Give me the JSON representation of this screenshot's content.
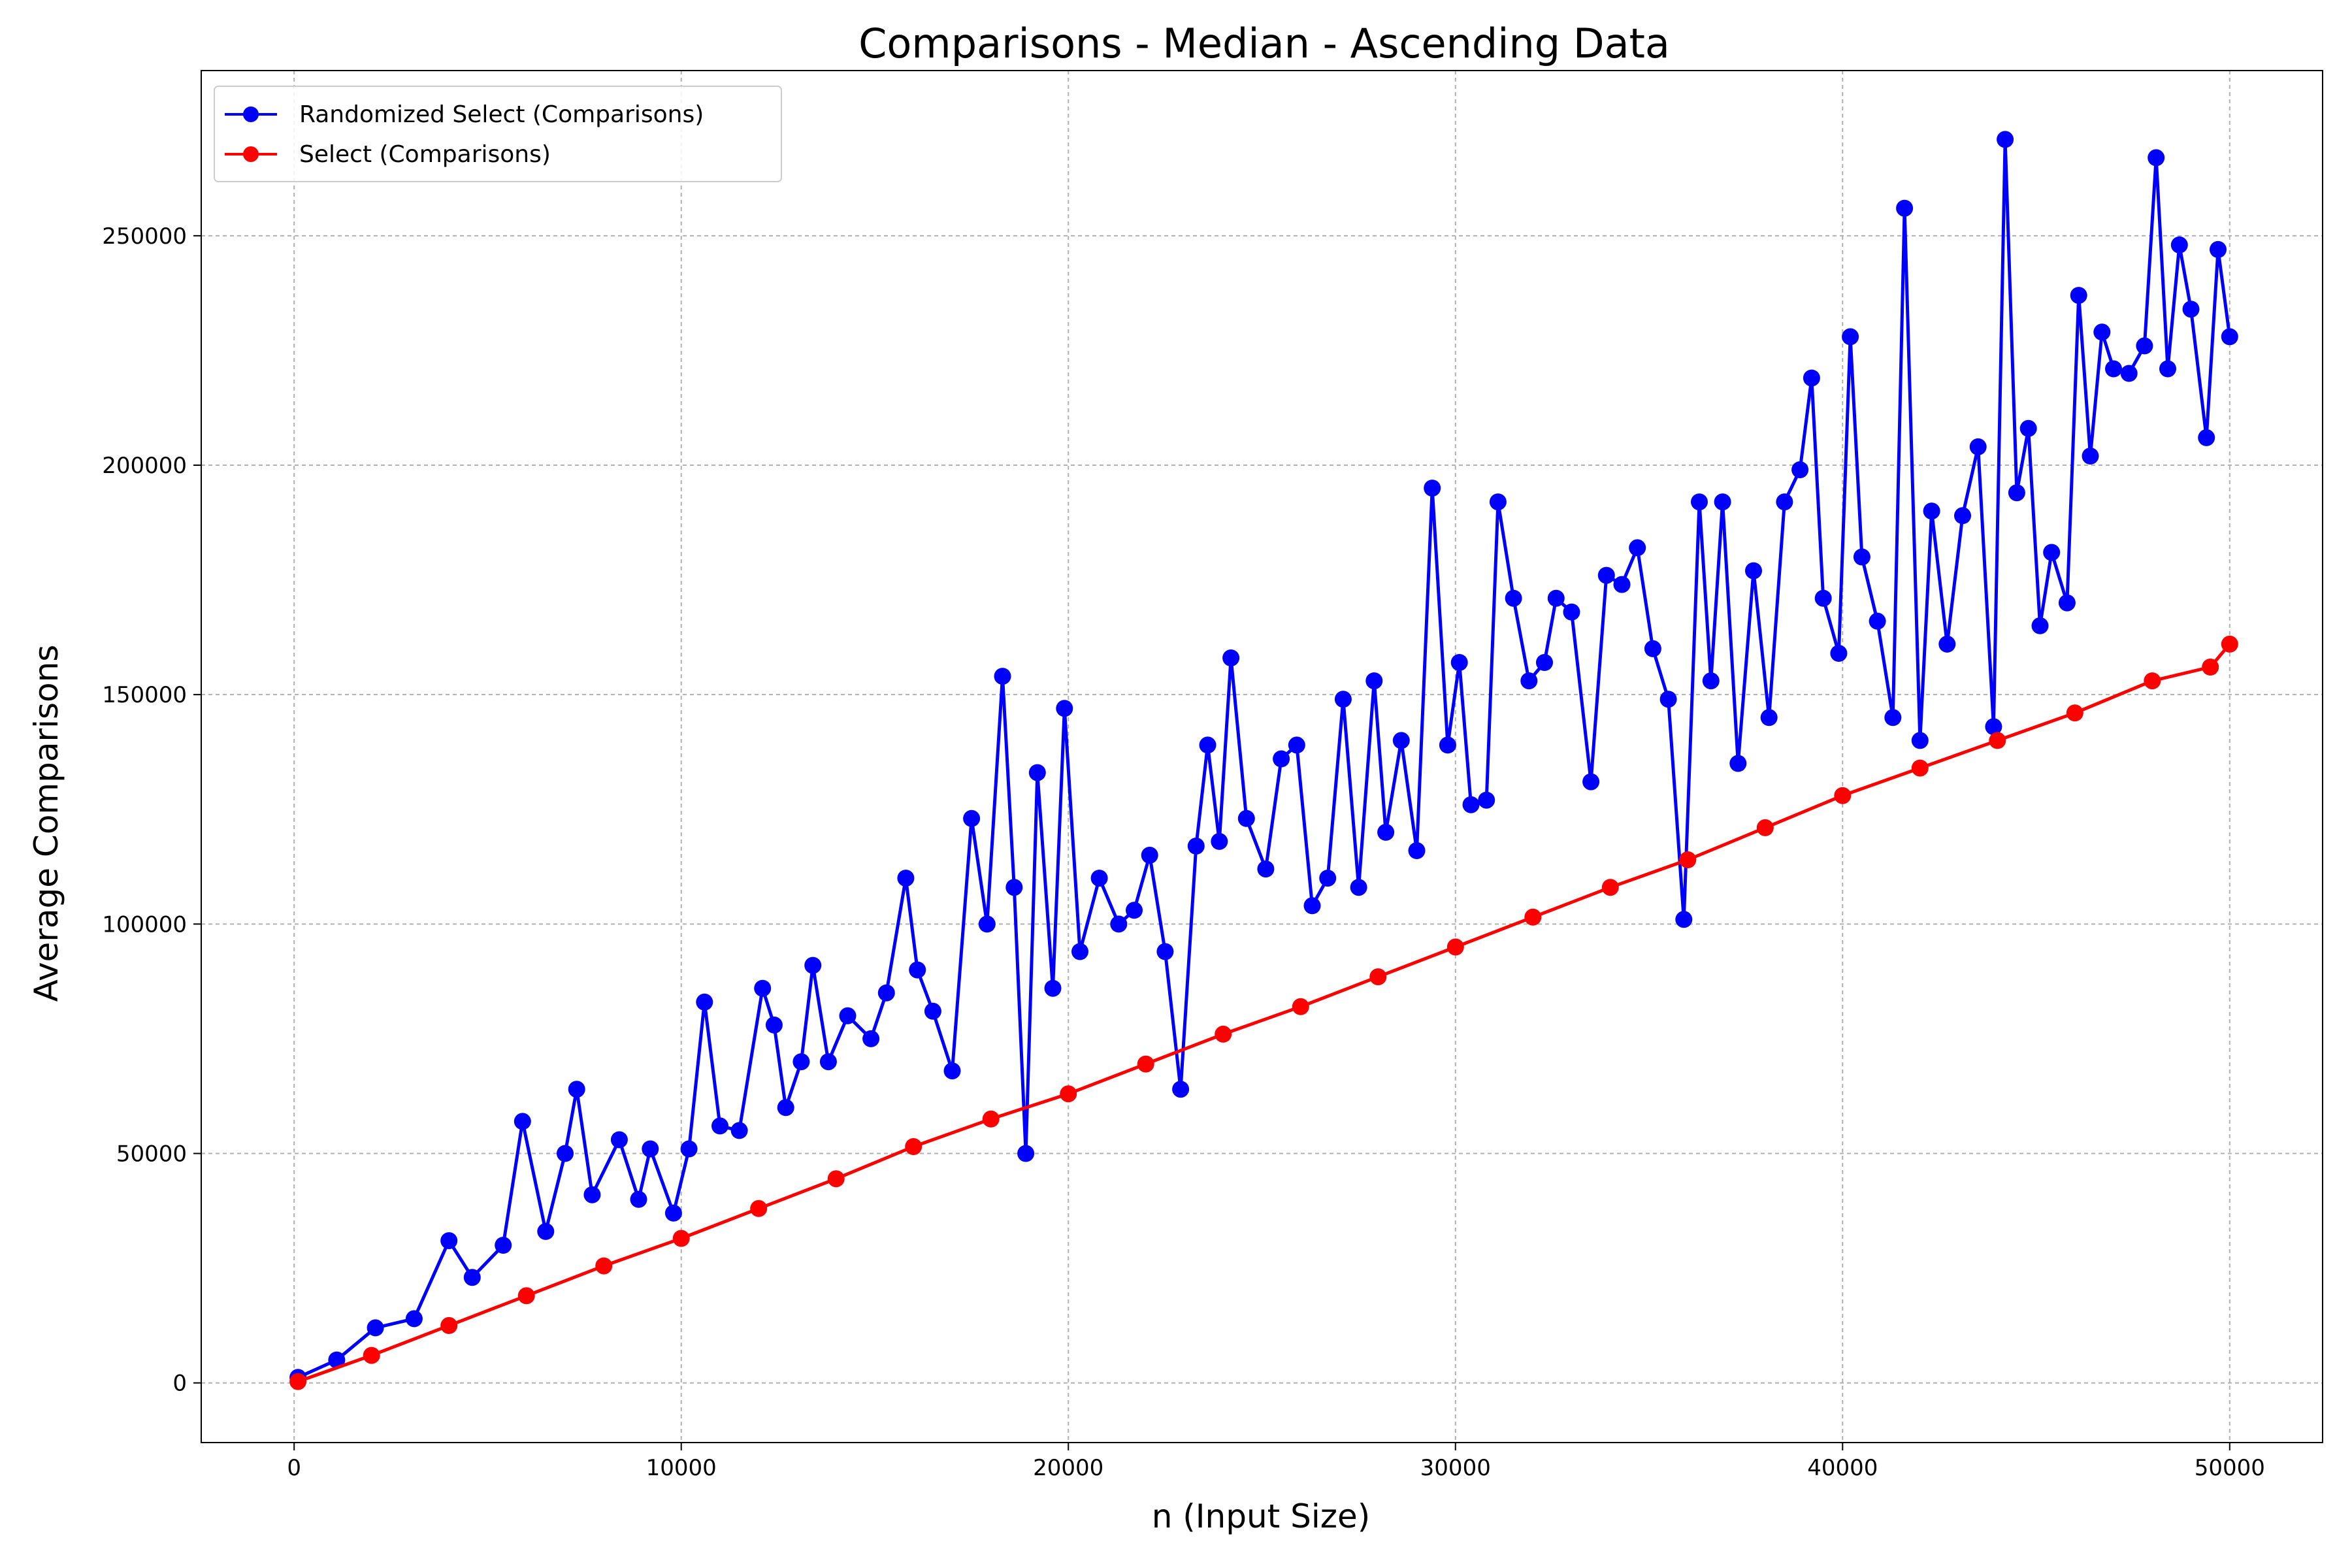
{
  "chart_data": {
    "type": "line",
    "title": "Comparisons - Median - Ascending Data",
    "xlabel": "n (Input Size)",
    "ylabel": "Average Comparisons",
    "xlim": [
      -2400,
      52400
    ],
    "ylim": [
      -13000,
      286000
    ],
    "xticks": [
      0,
      10000,
      20000,
      30000,
      40000,
      50000
    ],
    "yticks": [
      0,
      50000,
      100000,
      150000,
      200000,
      250000
    ],
    "grid": true,
    "legend_position": "top-left",
    "series": [
      {
        "name": "Randomized Select (Comparisons)",
        "color": "#0000ff",
        "x": [
          100,
          1100,
          2100,
          3100,
          4000,
          4600,
          5400,
          5900,
          6500,
          7000,
          7300,
          7700,
          8400,
          8900,
          9200,
          9800,
          10200,
          10600,
          11000,
          11500,
          12100,
          12400,
          12700,
          13100,
          13400,
          13800,
          14300,
          14900,
          15300,
          15800,
          16100,
          16500,
          17000,
          17500,
          17900,
          18300,
          18600,
          18900,
          19200,
          19600,
          19900,
          20300,
          20800,
          21300,
          21700,
          22100,
          22500,
          22900,
          23300,
          23600,
          23900,
          24200,
          24600,
          25100,
          25500,
          25900,
          26300,
          26700,
          27100,
          27500,
          27900,
          28200,
          28600,
          29000,
          29400,
          29800,
          30100,
          30400,
          30800,
          31100,
          31500,
          31900,
          32300,
          32600,
          33000,
          33500,
          33900,
          34300,
          34700,
          35100,
          35500,
          35900,
          36300,
          36600,
          36900,
          37300,
          37700,
          38100,
          38500,
          38900,
          39200,
          39500,
          39900,
          40200,
          40500,
          40900,
          41300,
          41600,
          42000,
          42300,
          42700,
          43100,
          43500,
          43900,
          44200,
          44500,
          44800,
          45100,
          45400,
          45800,
          46100,
          46400,
          46700,
          47000,
          47400,
          47800,
          48100,
          48400,
          48700,
          49000,
          49400,
          49700,
          50000
        ],
        "y": [
          1200,
          5000,
          12000,
          14000,
          31000,
          23000,
          30000,
          57000,
          33000,
          50000,
          64000,
          41000,
          53000,
          40000,
          51000,
          37000,
          51000,
          83000,
          56000,
          55000,
          86000,
          78000,
          60000,
          70000,
          91000,
          70000,
          80000,
          75000,
          85000,
          110000,
          90000,
          81000,
          68000,
          123000,
          100000,
          154000,
          108000,
          50000,
          133000,
          86000,
          147000,
          94000,
          110000,
          100000,
          103000,
          115000,
          94000,
          64000,
          117000,
          139000,
          118000,
          158000,
          123000,
          112000,
          136000,
          139000,
          104000,
          110000,
          149000,
          108000,
          153000,
          120000,
          140000,
          116000,
          195000,
          139000,
          157000,
          126000,
          127000,
          192000,
          171000,
          153000,
          157000,
          171000,
          168000,
          131000,
          176000,
          174000,
          182000,
          160000,
          149000,
          101000,
          192000,
          153000,
          192000,
          135000,
          177000,
          145000,
          192000,
          199000,
          219000,
          171000,
          159000,
          228000,
          180000,
          166000,
          145000,
          256000,
          140000,
          190000,
          161000,
          189000,
          204000,
          143000,
          271000,
          194000,
          208000,
          165000,
          181000,
          170000,
          237000,
          202000,
          229000,
          221000,
          220000,
          226000,
          267000,
          221000,
          248000,
          234000,
          206000,
          247000,
          228000
        ],
        "marker": "circle"
      },
      {
        "name": "Select (Comparisons)",
        "color": "#ff0000",
        "x": [
          100,
          2000,
          4000,
          6000,
          8000,
          10000,
          12000,
          14000,
          16000,
          18000,
          20000,
          22000,
          24000,
          26000,
          28000,
          30000,
          32000,
          34000,
          36000,
          38000,
          40000,
          42000,
          44000,
          46000,
          48000,
          49500,
          50000
        ],
        "y": [
          300,
          6000,
          12500,
          19000,
          25500,
          31500,
          38000,
          44500,
          51500,
          57500,
          63000,
          69500,
          76000,
          82000,
          88500,
          95000,
          101500,
          108000,
          114000,
          121000,
          128000,
          134000,
          140000,
          146000,
          153000,
          156000,
          161000
        ],
        "marker": "circle"
      }
    ]
  }
}
